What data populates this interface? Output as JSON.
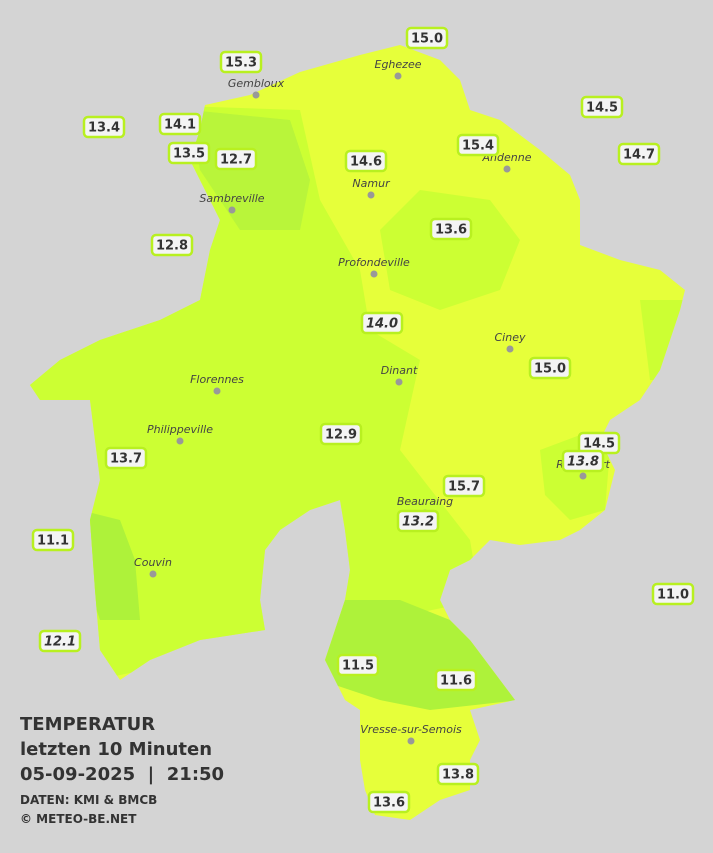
{
  "title": {
    "heading": "TEMPERATUR",
    "subheading": "letzten 10 Minuten",
    "datetime": "05-09-2025  |  21:50",
    "source": "DATEN: KMI & BMCB",
    "copyright": "© METEO-BE.NET"
  },
  "cities": [
    "Eghezee",
    "Gembloux",
    "Andenne",
    "Namur",
    "Sambreville",
    "Profondeville",
    "Ciney",
    "Dinant",
    "Florennes",
    "Philippeville",
    "Rochefort",
    "Beauraing",
    "Couvin",
    "Vresse-sur-Semois"
  ],
  "stations": [
    {
      "label": "15.0"
    },
    {
      "label": "15.3"
    },
    {
      "label": "14.5"
    },
    {
      "label": "13.4"
    },
    {
      "label": "14.1"
    },
    {
      "label": "15.4"
    },
    {
      "label": "14.7"
    },
    {
      "label": "13.5"
    },
    {
      "label": "12.7"
    },
    {
      "label": "14.6"
    },
    {
      "label": "13.6"
    },
    {
      "label": "12.8"
    },
    {
      "label": "14.0",
      "italic": true
    },
    {
      "label": "15.0"
    },
    {
      "label": "12.9"
    },
    {
      "label": "14.5"
    },
    {
      "label": "13.8",
      "italic": true
    },
    {
      "label": "13.7"
    },
    {
      "label": "15.7"
    },
    {
      "label": "13.2",
      "italic": true
    },
    {
      "label": "11.1"
    },
    {
      "label": "11.0"
    },
    {
      "label": "12.1",
      "italic": true
    },
    {
      "label": "11.5"
    },
    {
      "label": "11.6"
    },
    {
      "label": "13.8"
    },
    {
      "label": "13.6"
    }
  ]
}
